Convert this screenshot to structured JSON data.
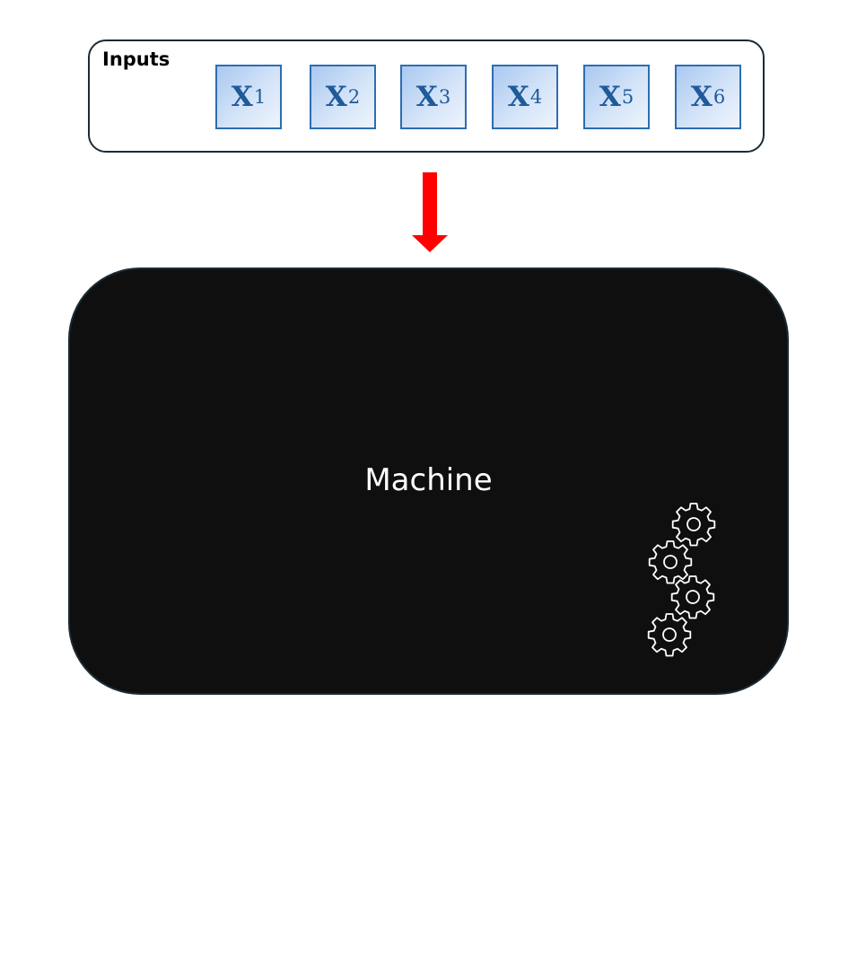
{
  "inputs": {
    "label": "Inputs",
    "items": [
      {
        "var": "X",
        "sub": "1"
      },
      {
        "var": "X",
        "sub": "2"
      },
      {
        "var": "X",
        "sub": "3"
      },
      {
        "var": "X",
        "sub": "4"
      },
      {
        "var": "X",
        "sub": "5"
      },
      {
        "var": "X",
        "sub": "6"
      }
    ]
  },
  "arrow": {
    "color": "#ff0000",
    "icon": "down-arrow-icon"
  },
  "machine": {
    "label": "Machine",
    "icon": "gears-icon"
  }
}
